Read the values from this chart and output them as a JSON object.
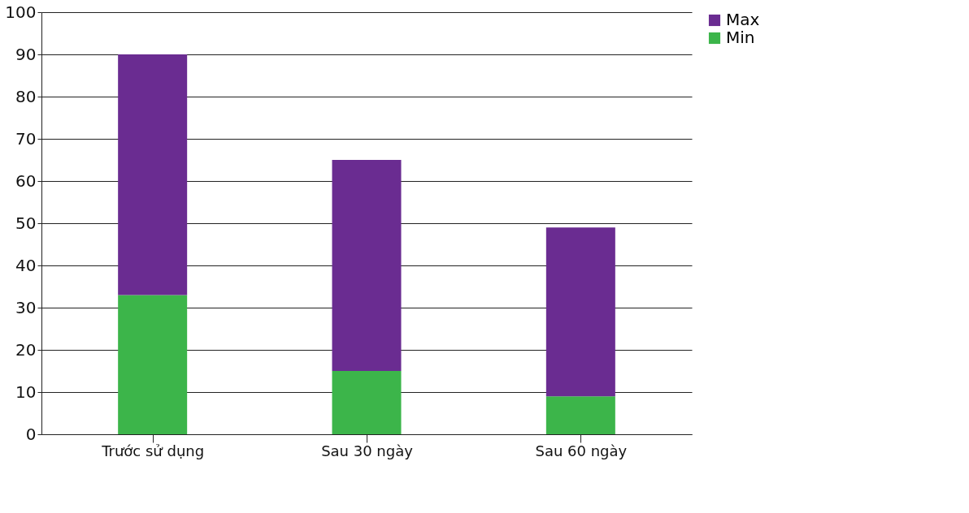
{
  "chart_data": {
    "type": "bar",
    "stacked": true,
    "categories": [
      "Trước sử dụng",
      "Sau 30 ngày",
      "Sau 60 ngày"
    ],
    "series": [
      {
        "name": "Min",
        "color": "#3cb54a",
        "values": [
          33,
          15,
          9
        ]
      },
      {
        "name": "Max",
        "color": "#6a2c91",
        "values": [
          57,
          50,
          40
        ]
      }
    ],
    "ylim": [
      0,
      100
    ],
    "yticks": [
      0,
      10,
      20,
      30,
      40,
      50,
      60,
      70,
      80,
      90,
      100
    ],
    "grid": "y",
    "legend": "right"
  }
}
